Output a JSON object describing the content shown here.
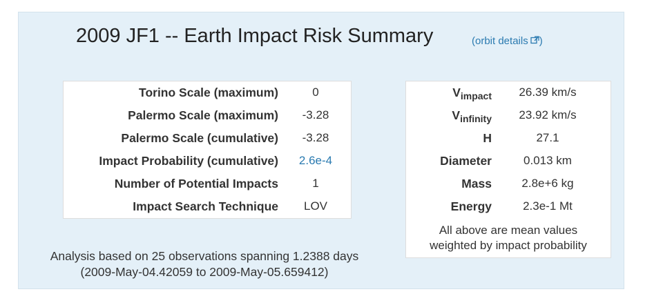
{
  "header": {
    "title": "2009 JF1 -- Earth Impact Risk Summary",
    "orbit_link": "(orbit details",
    "orbit_link_close": ")",
    "orbit_icon": "external-link-icon"
  },
  "risk_table": {
    "rows": [
      {
        "label": "Torino Scale (maximum)",
        "value": "0"
      },
      {
        "label": "Palermo Scale (maximum)",
        "value": "-3.28"
      },
      {
        "label": "Palermo Scale (cumulative)",
        "value": "-3.28"
      },
      {
        "label": "Impact Probability (cumulative)",
        "value": "2.6e-4"
      },
      {
        "label": "Number of Potential Impacts",
        "value": "1"
      },
      {
        "label": "Impact Search Technique",
        "value": "LOV"
      }
    ]
  },
  "physical_table": {
    "rows": [
      {
        "label": "V",
        "sub": "impact",
        "value": "26.39 km/s"
      },
      {
        "label": "V",
        "sub": "infinity",
        "value": "23.92 km/s"
      },
      {
        "label": "H",
        "value": "27.1"
      },
      {
        "label": "Diameter",
        "value": "0.013 km"
      },
      {
        "label": "Mass",
        "value": "2.8e+6 kg"
      },
      {
        "label": "Energy",
        "value": "2.3e-1 Mt"
      }
    ],
    "note_line1": "All above are mean values",
    "note_line2": "weighted by impact probability"
  },
  "analysis": {
    "line1": "Analysis based on 25 observations spanning 1.2388 days",
    "line2": "(2009-May-04.42059 to 2009-May-05.659412)"
  },
  "colors": {
    "panel_bg": "#e4f0f8",
    "link": "#2a7ab0"
  }
}
